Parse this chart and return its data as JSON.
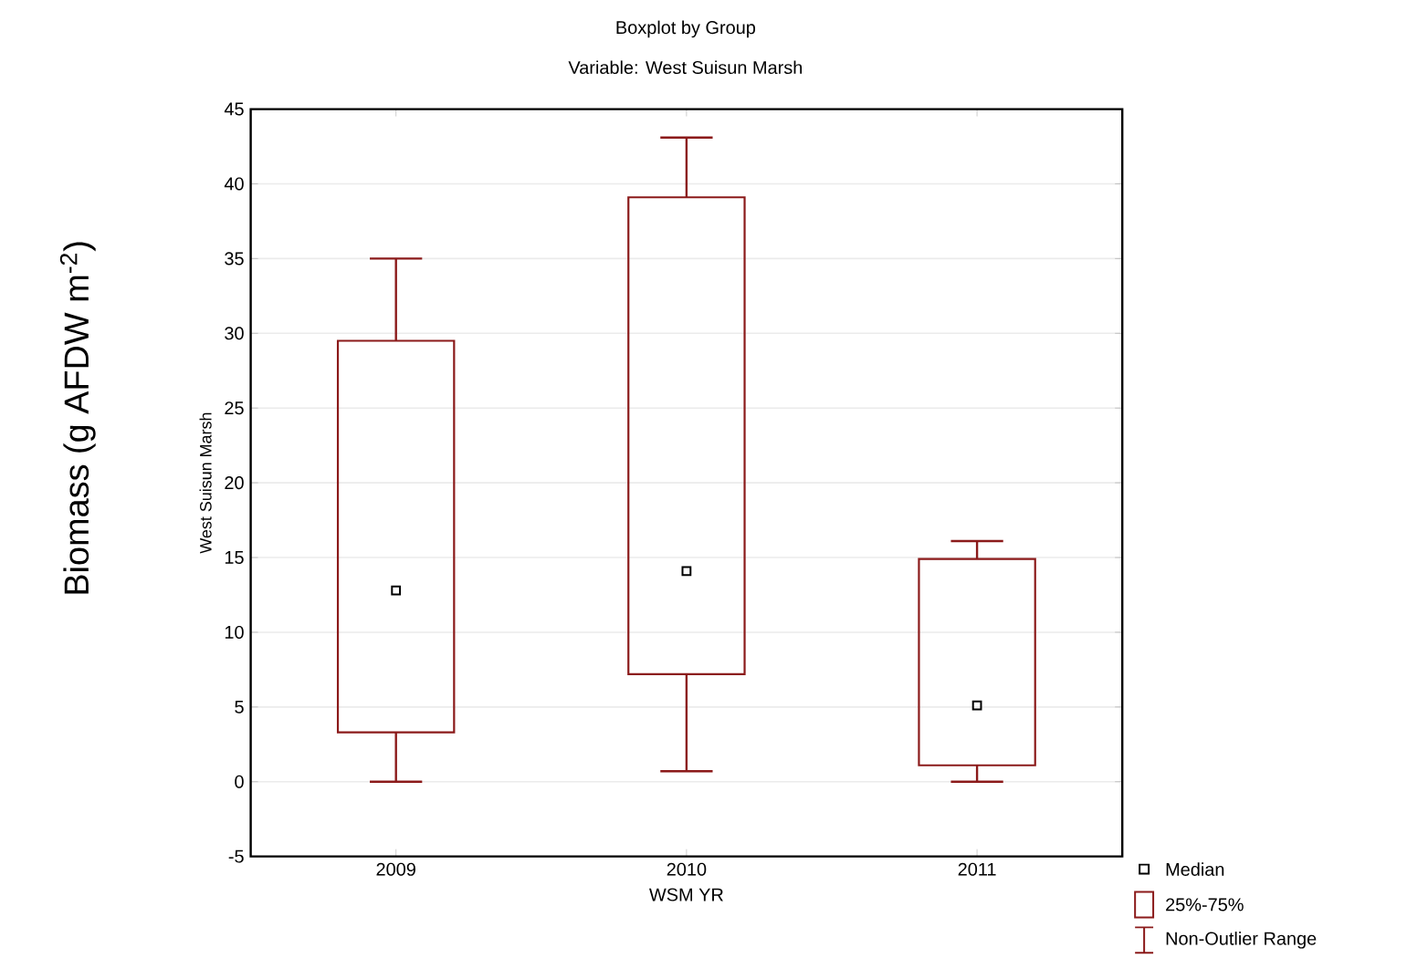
{
  "chart_data": {
    "type": "box",
    "title": "Boxplot by Group",
    "subtitle": "Variable: West Suisun Marsh",
    "xlabel": "WSM YR",
    "ylabel": "West Suisun Marsh",
    "categories": [
      "2009",
      "2010",
      "2011"
    ],
    "series": [
      {
        "color": "#8b1a1a",
        "boxes": [
          {
            "low": 0,
            "q1": 3.3,
            "median": 12.8,
            "q3": 29.5,
            "high": 35
          },
          {
            "low": 0.7,
            "q1": 7.2,
            "median": 14.1,
            "q3": 39.1,
            "high": 43.1
          },
          {
            "low": 0,
            "q1": 1.1,
            "median": 5.1,
            "q3": 14.9,
            "high": 16.1
          }
        ]
      }
    ],
    "ylim": [
      -5,
      45
    ],
    "yticks": [
      -5,
      0,
      5,
      10,
      15,
      20,
      25,
      30,
      35,
      40,
      45
    ],
    "grid": "y",
    "annotations": [
      "Biomass (g AFDW m$^{-2}$)",
      "Median",
      "25%-75%",
      "Non-Outlier Range"
    ]
  }
}
